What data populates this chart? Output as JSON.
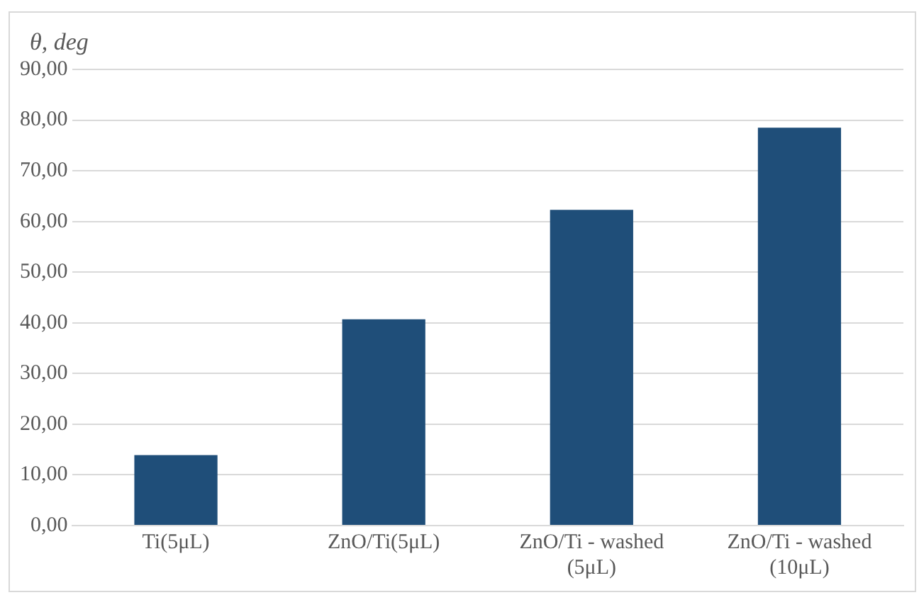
{
  "chart_data": {
    "type": "bar",
    "ylabel": "θ, deg",
    "categories": [
      "Ti(5μL)",
      "ZnO/Ti(5μL)",
      "ZnO/Ti - washed (5μL)",
      "ZnO/Ti - washed (10μL)"
    ],
    "values": [
      13.9,
      40.7,
      62.3,
      78.5
    ],
    "color": "#1f4e79",
    "ylim": [
      0,
      90
    ],
    "yticks": [
      {
        "value": 0,
        "label": "0,00"
      },
      {
        "value": 10,
        "label": "10,00"
      },
      {
        "value": 20,
        "label": "20,00"
      },
      {
        "value": 30,
        "label": "30,00"
      },
      {
        "value": 40,
        "label": "40,00"
      },
      {
        "value": 50,
        "label": "50,00"
      },
      {
        "value": 60,
        "label": "60,00"
      },
      {
        "value": 70,
        "label": "70,00"
      },
      {
        "value": 80,
        "label": "80,00"
      },
      {
        "value": 90,
        "label": "90,00"
      }
    ],
    "grid": "y",
    "legend": false
  }
}
